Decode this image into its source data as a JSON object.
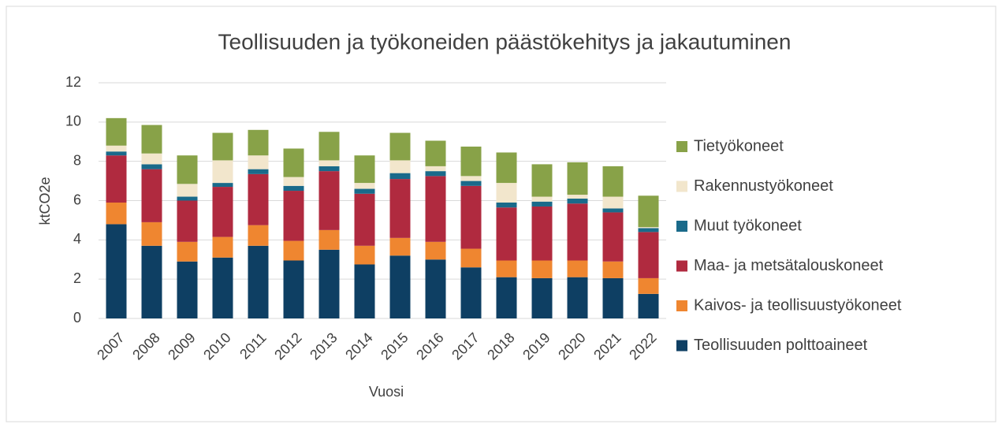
{
  "chart_data": {
    "type": "stacked_bar",
    "title": "Teollisuuden ja työkoneiden päästökehitys ja jakautuminen",
    "x_label": "Vuosi",
    "y_label": "ktCO2e",
    "categories": [
      "2007",
      "2008",
      "2009",
      "2010",
      "2011",
      "2012",
      "2013",
      "2014",
      "2015",
      "2016",
      "2017",
      "2018",
      "2019",
      "2020",
      "2021",
      "2022"
    ],
    "series": [
      {
        "name": "Teollisuuden polttoaineet",
        "color": "#0e3f63",
        "values": [
          4.8,
          3.7,
          2.9,
          3.1,
          3.7,
          2.95,
          3.5,
          2.75,
          3.2,
          3.0,
          2.6,
          2.1,
          2.05,
          2.1,
          2.05,
          1.25
        ]
      },
      {
        "name": "Kaivos- ja teollisuustyökoneet",
        "color": "#ef8630",
        "values": [
          1.1,
          1.2,
          1.0,
          1.05,
          1.05,
          1.0,
          1.0,
          0.95,
          0.9,
          0.9,
          0.95,
          0.85,
          0.9,
          0.85,
          0.85,
          0.8
        ]
      },
      {
        "name": "Maa- ja metsätalouskoneet",
        "color": "#b02a3f",
        "values": [
          2.4,
          2.7,
          2.1,
          2.55,
          2.6,
          2.55,
          3.0,
          2.65,
          3.0,
          3.35,
          3.2,
          2.7,
          2.75,
          2.9,
          2.5,
          2.35
        ]
      },
      {
        "name": "Muut työkoneet",
        "color": "#1a6a8a",
        "values": [
          0.2,
          0.25,
          0.2,
          0.2,
          0.25,
          0.25,
          0.25,
          0.25,
          0.3,
          0.25,
          0.25,
          0.25,
          0.25,
          0.25,
          0.2,
          0.2
        ]
      },
      {
        "name": "Rakennustyökoneet",
        "color": "#f2e6cc",
        "values": [
          0.3,
          0.55,
          0.65,
          1.15,
          0.7,
          0.45,
          0.3,
          0.3,
          0.65,
          0.25,
          0.25,
          1.0,
          0.25,
          0.2,
          0.6,
          0.05
        ]
      },
      {
        "name": "Tietyökoneet",
        "color": "#88a248",
        "values": [
          1.4,
          1.45,
          1.45,
          1.4,
          1.3,
          1.45,
          1.45,
          1.4,
          1.4,
          1.3,
          1.5,
          1.55,
          1.65,
          1.65,
          1.55,
          1.6
        ]
      }
    ],
    "ylim": [
      0,
      12
    ],
    "yticks": [
      0,
      2,
      4,
      6,
      8,
      10,
      12
    ],
    "grid": true,
    "legend": "right"
  }
}
